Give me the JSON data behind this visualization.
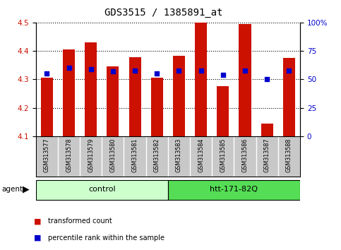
{
  "title": "GDS3515 / 1385891_at",
  "samples": [
    "GSM313577",
    "GSM313578",
    "GSM313579",
    "GSM313580",
    "GSM313581",
    "GSM313582",
    "GSM313583",
    "GSM313584",
    "GSM313585",
    "GSM313586",
    "GSM313587",
    "GSM313588"
  ],
  "transformed_count": [
    4.305,
    4.405,
    4.43,
    4.345,
    4.378,
    4.305,
    4.383,
    4.5,
    4.277,
    4.495,
    4.145,
    4.375
  ],
  "percentile_rank": [
    55,
    60,
    59,
    57,
    58,
    55,
    58,
    58,
    54,
    58,
    50,
    58
  ],
  "ylim_left": [
    4.1,
    4.5
  ],
  "ylim_right": [
    0,
    100
  ],
  "yticks_left": [
    4.1,
    4.2,
    4.3,
    4.4,
    4.5
  ],
  "yticks_right": [
    0,
    25,
    50,
    75,
    100
  ],
  "ytick_labels_right": [
    "0",
    "25",
    "50",
    "75",
    "100%"
  ],
  "bar_color": "#cc1100",
  "dot_color": "#0000cc",
  "groups": [
    {
      "label": "control",
      "indices": [
        0,
        1,
        2,
        3,
        4,
        5
      ],
      "color": "#ccffcc"
    },
    {
      "label": "htt-171-82Q",
      "indices": [
        6,
        7,
        8,
        9,
        10,
        11
      ],
      "color": "#55dd55"
    }
  ],
  "agent_label": "agent",
  "legend_items": [
    {
      "label": "transformed count",
      "color": "#cc1100"
    },
    {
      "label": "percentile rank within the sample",
      "color": "#0000cc"
    }
  ],
  "background_color": "#ffffff",
  "plot_bg_color": "#ffffff",
  "tick_label_color_left": "#cc1100",
  "tick_label_color_right": "#0000cc",
  "xlabels_bg": "#c8c8c8",
  "spine_color": "#000000"
}
